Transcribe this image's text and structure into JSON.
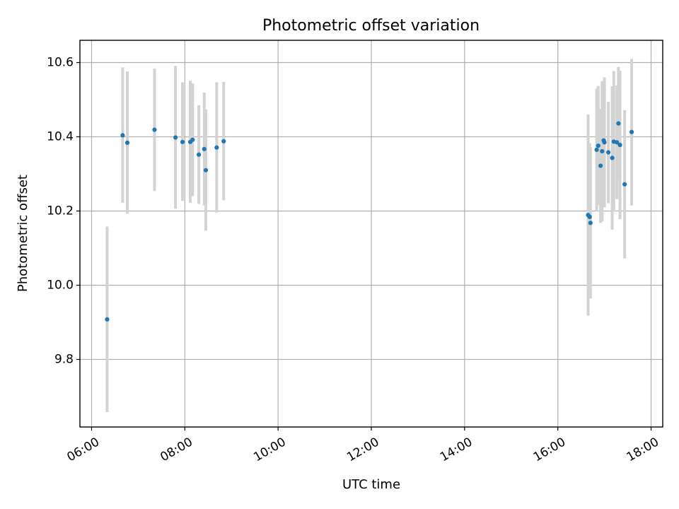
{
  "chart_data": {
    "type": "scatter",
    "title": "Photometric offset variation",
    "xlabel": "UTC time",
    "ylabel": "Photometric offset",
    "x_ticks": [
      "06:00",
      "08:00",
      "10:00",
      "12:00",
      "14:00",
      "16:00",
      "18:00"
    ],
    "y_ticks": [
      "9.8",
      "10.0",
      "10.2",
      "10.4",
      "10.6"
    ],
    "xlim": [
      "05:45",
      "18:15"
    ],
    "ylim": [
      9.618,
      10.66
    ],
    "grid": true,
    "errorbar_color": "#d3d3d3",
    "marker_color": "#1f77b4",
    "series": [
      {
        "points": [
          {
            "t": "06:20",
            "y": 9.908,
            "lo": 9.658,
            "hi": 10.158
          },
          {
            "t": "06:40",
            "y": 10.404,
            "lo": 10.222,
            "hi": 10.587
          },
          {
            "t": "06:46",
            "y": 10.384,
            "lo": 10.193,
            "hi": 10.576
          },
          {
            "t": "07:21",
            "y": 10.419,
            "lo": 10.254,
            "hi": 10.584
          },
          {
            "t": "07:48",
            "y": 10.398,
            "lo": 10.206,
            "hi": 10.591
          },
          {
            "t": "07:57",
            "y": 10.386,
            "lo": 10.227,
            "hi": 10.547
          },
          {
            "t": "08:07",
            "y": 10.386,
            "lo": 10.222,
            "hi": 10.551
          },
          {
            "t": "08:10",
            "y": 10.392,
            "lo": 10.24,
            "hi": 10.544
          },
          {
            "t": "08:18",
            "y": 10.352,
            "lo": 10.219,
            "hi": 10.485
          },
          {
            "t": "08:25",
            "y": 10.367,
            "lo": 10.215,
            "hi": 10.519
          },
          {
            "t": "08:27",
            "y": 10.31,
            "lo": 10.147,
            "hi": 10.474
          },
          {
            "t": "08:41",
            "y": 10.371,
            "lo": 10.196,
            "hi": 10.547
          },
          {
            "t": "08:50",
            "y": 10.388,
            "lo": 10.229,
            "hi": 10.548
          },
          {
            "t": "16:39",
            "y": 10.189,
            "lo": 9.918,
            "hi": 10.46
          },
          {
            "t": "16:41",
            "y": 10.184,
            "lo": 9.985,
            "hi": 10.383
          },
          {
            "t": "16:42",
            "y": 10.168,
            "lo": 9.964,
            "hi": 10.372
          },
          {
            "t": "16:50",
            "y": 10.365,
            "lo": 10.2,
            "hi": 10.53
          },
          {
            "t": "16:52",
            "y": 10.376,
            "lo": 10.216,
            "hi": 10.537
          },
          {
            "t": "16:55",
            "y": 10.322,
            "lo": 10.168,
            "hi": 10.475
          },
          {
            "t": "16:57",
            "y": 10.361,
            "lo": 10.172,
            "hi": 10.55
          },
          {
            "t": "16:59",
            "y": 10.39,
            "lo": 10.234,
            "hi": 10.545
          },
          {
            "t": "17:00",
            "y": 10.385,
            "lo": 10.21,
            "hi": 10.56
          },
          {
            "t": "17:05",
            "y": 10.358,
            "lo": 10.221,
            "hi": 10.494
          },
          {
            "t": "17:10",
            "y": 10.343,
            "lo": 10.15,
            "hi": 10.536
          },
          {
            "t": "17:12",
            "y": 10.387,
            "lo": 10.198,
            "hi": 10.577
          },
          {
            "t": "17:16",
            "y": 10.385,
            "lo": 10.232,
            "hi": 10.538
          },
          {
            "t": "17:18",
            "y": 10.436,
            "lo": 10.285,
            "hi": 10.588
          },
          {
            "t": "17:20",
            "y": 10.378,
            "lo": 10.178,
            "hi": 10.578
          },
          {
            "t": "17:26",
            "y": 10.272,
            "lo": 10.072,
            "hi": 10.472
          },
          {
            "t": "17:35",
            "y": 10.413,
            "lo": 10.215,
            "hi": 10.61
          }
        ]
      }
    ]
  }
}
